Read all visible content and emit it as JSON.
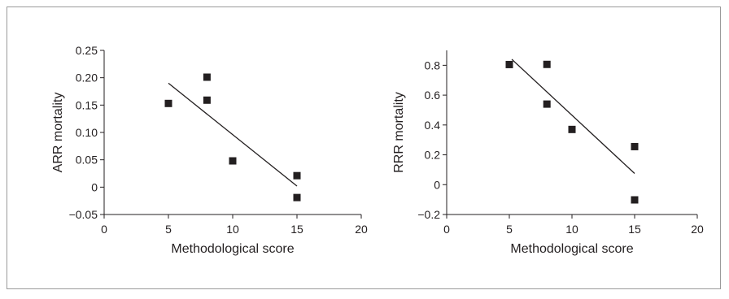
{
  "chart_data": [
    {
      "type": "scatter",
      "title": "",
      "xlabel": "Methodological score",
      "ylabel": "ARR mortality",
      "xlim": [
        0,
        20
      ],
      "ylim": [
        -0.05,
        0.25
      ],
      "xticks": [
        0,
        5,
        10,
        15,
        20
      ],
      "yticks": [
        -0.05,
        0,
        0.05,
        0.1,
        0.15,
        0.2,
        0.25
      ],
      "xtick_labels": [
        "0",
        "5",
        "10",
        "15",
        "20"
      ],
      "ytick_labels": [
        "−0.05",
        "0",
        "0.05",
        "0.10",
        "0.15",
        "0.20",
        "0.25"
      ],
      "grid": false,
      "series": [
        {
          "type": "scatter",
          "marker": "square",
          "color": "#231f20",
          "points": [
            [
              5,
              0.153
            ],
            [
              8,
              0.201
            ],
            [
              8,
              0.159
            ],
            [
              10,
              0.048
            ],
            [
              15,
              0.021
            ],
            [
              15,
              -0.019
            ]
          ]
        },
        {
          "type": "line",
          "color": "#231f20",
          "points": [
            [
              5,
              0.19
            ],
            [
              15,
              0.002
            ]
          ]
        }
      ]
    },
    {
      "type": "scatter",
      "title": "",
      "xlabel": "Methodological score",
      "ylabel": "RRR mortality",
      "xlim": [
        0,
        20
      ],
      "ylim": [
        -0.2,
        0.9
      ],
      "xticks": [
        0,
        5,
        10,
        15,
        20
      ],
      "yticks": [
        -0.2,
        0,
        0.2,
        0.4,
        0.6,
        0.8
      ],
      "xtick_labels": [
        "0",
        "5",
        "10",
        "15",
        "20"
      ],
      "ytick_labels": [
        "−0.2",
        "0",
        "0.2",
        "0.4",
        "0.6",
        "0.8"
      ],
      "grid": false,
      "series": [
        {
          "type": "scatter",
          "marker": "square",
          "color": "#231f20",
          "points": [
            [
              5,
              0.805
            ],
            [
              8,
              0.806
            ],
            [
              8,
              0.54
            ],
            [
              10,
              0.37
            ],
            [
              15,
              0.255
            ],
            [
              15,
              -0.102
            ]
          ]
        },
        {
          "type": "line",
          "color": "#231f20",
          "points": [
            [
              5.2,
              0.84
            ],
            [
              15,
              0.075
            ]
          ]
        }
      ]
    }
  ]
}
